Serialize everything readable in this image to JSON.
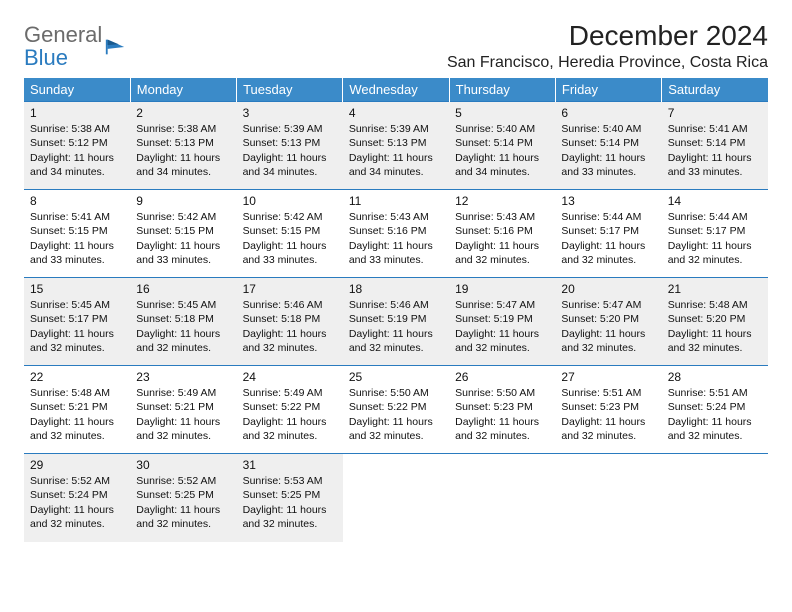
{
  "logo": {
    "general": "General",
    "blue": "Blue"
  },
  "title": "December 2024",
  "location": "San Francisco, Heredia Province, Costa Rica",
  "day_headers": [
    "Sunday",
    "Monday",
    "Tuesday",
    "Wednesday",
    "Thursday",
    "Friday",
    "Saturday"
  ],
  "weeks": [
    [
      {
        "d": "1",
        "sr": "Sunrise: 5:38 AM",
        "ss": "Sunset: 5:12 PM",
        "dl1": "Daylight: 11 hours",
        "dl2": "and 34 minutes."
      },
      {
        "d": "2",
        "sr": "Sunrise: 5:38 AM",
        "ss": "Sunset: 5:13 PM",
        "dl1": "Daylight: 11 hours",
        "dl2": "and 34 minutes."
      },
      {
        "d": "3",
        "sr": "Sunrise: 5:39 AM",
        "ss": "Sunset: 5:13 PM",
        "dl1": "Daylight: 11 hours",
        "dl2": "and 34 minutes."
      },
      {
        "d": "4",
        "sr": "Sunrise: 5:39 AM",
        "ss": "Sunset: 5:13 PM",
        "dl1": "Daylight: 11 hours",
        "dl2": "and 34 minutes."
      },
      {
        "d": "5",
        "sr": "Sunrise: 5:40 AM",
        "ss": "Sunset: 5:14 PM",
        "dl1": "Daylight: 11 hours",
        "dl2": "and 34 minutes."
      },
      {
        "d": "6",
        "sr": "Sunrise: 5:40 AM",
        "ss": "Sunset: 5:14 PM",
        "dl1": "Daylight: 11 hours",
        "dl2": "and 33 minutes."
      },
      {
        "d": "7",
        "sr": "Sunrise: 5:41 AM",
        "ss": "Sunset: 5:14 PM",
        "dl1": "Daylight: 11 hours",
        "dl2": "and 33 minutes."
      }
    ],
    [
      {
        "d": "8",
        "sr": "Sunrise: 5:41 AM",
        "ss": "Sunset: 5:15 PM",
        "dl1": "Daylight: 11 hours",
        "dl2": "and 33 minutes."
      },
      {
        "d": "9",
        "sr": "Sunrise: 5:42 AM",
        "ss": "Sunset: 5:15 PM",
        "dl1": "Daylight: 11 hours",
        "dl2": "and 33 minutes."
      },
      {
        "d": "10",
        "sr": "Sunrise: 5:42 AM",
        "ss": "Sunset: 5:15 PM",
        "dl1": "Daylight: 11 hours",
        "dl2": "and 33 minutes."
      },
      {
        "d": "11",
        "sr": "Sunrise: 5:43 AM",
        "ss": "Sunset: 5:16 PM",
        "dl1": "Daylight: 11 hours",
        "dl2": "and 33 minutes."
      },
      {
        "d": "12",
        "sr": "Sunrise: 5:43 AM",
        "ss": "Sunset: 5:16 PM",
        "dl1": "Daylight: 11 hours",
        "dl2": "and 32 minutes."
      },
      {
        "d": "13",
        "sr": "Sunrise: 5:44 AM",
        "ss": "Sunset: 5:17 PM",
        "dl1": "Daylight: 11 hours",
        "dl2": "and 32 minutes."
      },
      {
        "d": "14",
        "sr": "Sunrise: 5:44 AM",
        "ss": "Sunset: 5:17 PM",
        "dl1": "Daylight: 11 hours",
        "dl2": "and 32 minutes."
      }
    ],
    [
      {
        "d": "15",
        "sr": "Sunrise: 5:45 AM",
        "ss": "Sunset: 5:17 PM",
        "dl1": "Daylight: 11 hours",
        "dl2": "and 32 minutes."
      },
      {
        "d": "16",
        "sr": "Sunrise: 5:45 AM",
        "ss": "Sunset: 5:18 PM",
        "dl1": "Daylight: 11 hours",
        "dl2": "and 32 minutes."
      },
      {
        "d": "17",
        "sr": "Sunrise: 5:46 AM",
        "ss": "Sunset: 5:18 PM",
        "dl1": "Daylight: 11 hours",
        "dl2": "and 32 minutes."
      },
      {
        "d": "18",
        "sr": "Sunrise: 5:46 AM",
        "ss": "Sunset: 5:19 PM",
        "dl1": "Daylight: 11 hours",
        "dl2": "and 32 minutes."
      },
      {
        "d": "19",
        "sr": "Sunrise: 5:47 AM",
        "ss": "Sunset: 5:19 PM",
        "dl1": "Daylight: 11 hours",
        "dl2": "and 32 minutes."
      },
      {
        "d": "20",
        "sr": "Sunrise: 5:47 AM",
        "ss": "Sunset: 5:20 PM",
        "dl1": "Daylight: 11 hours",
        "dl2": "and 32 minutes."
      },
      {
        "d": "21",
        "sr": "Sunrise: 5:48 AM",
        "ss": "Sunset: 5:20 PM",
        "dl1": "Daylight: 11 hours",
        "dl2": "and 32 minutes."
      }
    ],
    [
      {
        "d": "22",
        "sr": "Sunrise: 5:48 AM",
        "ss": "Sunset: 5:21 PM",
        "dl1": "Daylight: 11 hours",
        "dl2": "and 32 minutes."
      },
      {
        "d": "23",
        "sr": "Sunrise: 5:49 AM",
        "ss": "Sunset: 5:21 PM",
        "dl1": "Daylight: 11 hours",
        "dl2": "and 32 minutes."
      },
      {
        "d": "24",
        "sr": "Sunrise: 5:49 AM",
        "ss": "Sunset: 5:22 PM",
        "dl1": "Daylight: 11 hours",
        "dl2": "and 32 minutes."
      },
      {
        "d": "25",
        "sr": "Sunrise: 5:50 AM",
        "ss": "Sunset: 5:22 PM",
        "dl1": "Daylight: 11 hours",
        "dl2": "and 32 minutes."
      },
      {
        "d": "26",
        "sr": "Sunrise: 5:50 AM",
        "ss": "Sunset: 5:23 PM",
        "dl1": "Daylight: 11 hours",
        "dl2": "and 32 minutes."
      },
      {
        "d": "27",
        "sr": "Sunrise: 5:51 AM",
        "ss": "Sunset: 5:23 PM",
        "dl1": "Daylight: 11 hours",
        "dl2": "and 32 minutes."
      },
      {
        "d": "28",
        "sr": "Sunrise: 5:51 AM",
        "ss": "Sunset: 5:24 PM",
        "dl1": "Daylight: 11 hours",
        "dl2": "and 32 minutes."
      }
    ],
    [
      {
        "d": "29",
        "sr": "Sunrise: 5:52 AM",
        "ss": "Sunset: 5:24 PM",
        "dl1": "Daylight: 11 hours",
        "dl2": "and 32 minutes."
      },
      {
        "d": "30",
        "sr": "Sunrise: 5:52 AM",
        "ss": "Sunset: 5:25 PM",
        "dl1": "Daylight: 11 hours",
        "dl2": "and 32 minutes."
      },
      {
        "d": "31",
        "sr": "Sunrise: 5:53 AM",
        "ss": "Sunset: 5:25 PM",
        "dl1": "Daylight: 11 hours",
        "dl2": "and 32 minutes."
      },
      null,
      null,
      null,
      null
    ]
  ],
  "colors": {
    "header_bg": "#3b8bc9",
    "border": "#2a7bbf",
    "shade": "#efefef",
    "text": "#111111",
    "logo_gray": "#6b6b6b",
    "logo_blue": "#2a7bbf"
  }
}
